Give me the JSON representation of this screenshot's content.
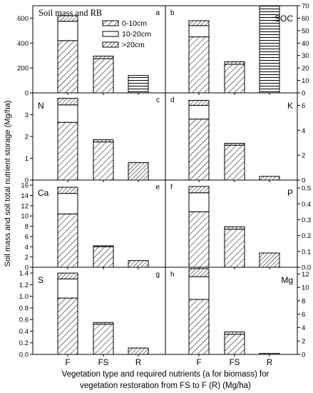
{
  "figure": {
    "ylabel": "Soil mass and soil total nutrient storage (Mg/ha)",
    "xlabel_line1": "Vegetation type and required nutrients (a for biomass) for",
    "xlabel_line2": "vegetation restoration from FS to F (R) (Mg/ha)",
    "categories": [
      "F",
      "FS",
      "R"
    ],
    "legend": [
      {
        "label": "0-10cm",
        "pattern": "diag-dense"
      },
      {
        "label": "10-20cm",
        "pattern": "blank"
      },
      {
        "label": ">20cm",
        "pattern": "diag"
      }
    ],
    "colors": {
      "axis": "#000000",
      "bar_fill": "#ffffff",
      "hatch": "#000000"
    }
  },
  "chart_data": [
    {
      "id": "a",
      "type": "bar",
      "stacked": true,
      "panel_letter": "a",
      "title": "Soil mass and RB",
      "name": "",
      "categories": [
        "F",
        "FS",
        "R"
      ],
      "ylim": [
        0,
        700
      ],
      "yticks": [
        0,
        200,
        400,
        600
      ],
      "ytick_labels": [
        "0",
        "200",
        "400",
        "600"
      ],
      "axis_side": "left",
      "show_legend": true,
      "series": [
        {
          "name": "0-10cm",
          "values": [
            420,
            275,
            0
          ]
        },
        {
          "name": "10-20cm",
          "values": [
            155,
            0,
            0
          ]
        },
        {
          "name": ">20cm",
          "values": [
            45,
            20,
            0
          ]
        }
      ],
      "extra_bars": [
        {
          "category": "R",
          "value": 140,
          "pattern": "horizontal"
        }
      ]
    },
    {
      "id": "b",
      "type": "bar",
      "stacked": true,
      "panel_letter": "b",
      "title": "",
      "name": "SOC",
      "categories": [
        "F",
        "FS",
        "R"
      ],
      "ylim": [
        0,
        70
      ],
      "yticks": [
        0,
        10,
        20,
        30,
        40,
        50,
        60,
        70
      ],
      "ytick_labels": [
        "0",
        "10",
        "20",
        "30",
        "40",
        "50",
        "60",
        "70"
      ],
      "axis_side": "right",
      "series": [
        {
          "name": "0-10cm",
          "values": [
            45,
            23,
            0
          ]
        },
        {
          "name": "10-20cm",
          "values": [
            9,
            0,
            0
          ]
        },
        {
          "name": ">20cm",
          "values": [
            4,
            2,
            0
          ]
        }
      ],
      "extra_bars": [
        {
          "category": "R",
          "value": 70,
          "pattern": "horizontal"
        }
      ]
    },
    {
      "id": "c",
      "type": "bar",
      "stacked": true,
      "panel_letter": "c",
      "title": "",
      "name": "N",
      "categories": [
        "F",
        "FS",
        "R"
      ],
      "ylim": [
        0,
        4
      ],
      "yticks": [
        0,
        1,
        2,
        3
      ],
      "ytick_labels": [
        "0",
        "1",
        "2",
        "3"
      ],
      "axis_side": "left",
      "series": [
        {
          "name": "0-10cm",
          "values": [
            2.65,
            1.75,
            0
          ]
        },
        {
          "name": "10-20cm",
          "values": [
            0.8,
            0,
            0
          ]
        },
        {
          "name": ">20cm",
          "values": [
            0.3,
            0.1,
            0
          ]
        }
      ],
      "extra_bars": [
        {
          "category": "R",
          "value": 0.8,
          "pattern": "diag"
        }
      ]
    },
    {
      "id": "d",
      "type": "bar",
      "stacked": true,
      "panel_letter": "d",
      "title": "",
      "name": "K",
      "categories": [
        "F",
        "FS",
        "R"
      ],
      "ylim": [
        0,
        7
      ],
      "yticks": [
        0,
        2,
        4,
        6
      ],
      "ytick_labels": [
        "0",
        "2",
        "4",
        "6"
      ],
      "axis_side": "right",
      "series": [
        {
          "name": "0-10cm",
          "values": [
            4.9,
            2.8,
            0
          ]
        },
        {
          "name": "10-20cm",
          "values": [
            1.1,
            0,
            0
          ]
        },
        {
          "name": ">20cm",
          "values": [
            0.4,
            0.15,
            0
          ]
        }
      ],
      "extra_bars": [
        {
          "category": "R",
          "value": 0.3,
          "pattern": "diag"
        }
      ]
    },
    {
      "id": "e",
      "type": "bar",
      "stacked": true,
      "panel_letter": "e",
      "title": "",
      "name": "Ca",
      "categories": [
        "F",
        "FS",
        "R"
      ],
      "ylim": [
        0,
        17
      ],
      "yticks": [
        0,
        2,
        4,
        6,
        8,
        10,
        12,
        14,
        16
      ],
      "ytick_labels": [
        "0",
        "2",
        "4",
        "6",
        "8",
        "10",
        "12",
        "14",
        "16"
      ],
      "axis_side": "left",
      "series": [
        {
          "name": "0-10cm",
          "values": [
            10.4,
            4.0,
            0
          ]
        },
        {
          "name": "10-20cm",
          "values": [
            4.0,
            0,
            0
          ]
        },
        {
          "name": ">20cm",
          "values": [
            1.2,
            0.2,
            0
          ]
        }
      ],
      "extra_bars": [
        {
          "category": "R",
          "value": 1.3,
          "pattern": "diag"
        }
      ]
    },
    {
      "id": "f",
      "type": "bar",
      "stacked": true,
      "panel_letter": "f",
      "title": "",
      "name": "P",
      "categories": [
        "F",
        "FS",
        "R"
      ],
      "ylim": [
        0,
        0.55
      ],
      "yticks": [
        0,
        0.1,
        0.2,
        0.3,
        0.4,
        0.5
      ],
      "ytick_labels": [
        "0.0",
        "0.1",
        "0.2",
        "0.3",
        "0.4",
        "0.5"
      ],
      "axis_side": "right",
      "series": [
        {
          "name": "0-10cm",
          "values": [
            0.35,
            0.24,
            0
          ]
        },
        {
          "name": "10-20cm",
          "values": [
            0.12,
            0,
            0
          ]
        },
        {
          "name": ">20cm",
          "values": [
            0.04,
            0.015,
            0
          ]
        }
      ],
      "extra_bars": [
        {
          "category": "R",
          "value": 0.09,
          "pattern": "diag"
        }
      ]
    },
    {
      "id": "g",
      "type": "bar",
      "stacked": true,
      "panel_letter": "g",
      "title": "",
      "name": "S",
      "categories": [
        "F",
        "FS",
        "R"
      ],
      "ylim": [
        0,
        1.5
      ],
      "yticks": [
        0,
        0.2,
        0.4,
        0.6,
        0.8,
        1.0,
        1.2,
        1.4
      ],
      "ytick_labels": [
        "0.0",
        "0.2",
        "0.4",
        "0.6",
        "0.8",
        "1.0",
        "1.2",
        "1.4"
      ],
      "axis_side": "left",
      "series": [
        {
          "name": "0-10cm",
          "values": [
            0.97,
            0.52,
            0
          ]
        },
        {
          "name": "10-20cm",
          "values": [
            0.33,
            0,
            0
          ]
        },
        {
          "name": ">20cm",
          "values": [
            0.1,
            0.03,
            0
          ]
        }
      ],
      "extra_bars": [
        {
          "category": "R",
          "value": 0.11,
          "pattern": "diag"
        }
      ]
    },
    {
      "id": "h",
      "type": "bar",
      "stacked": true,
      "panel_letter": "h",
      "title": "",
      "name": "Mg",
      "categories": [
        "F",
        "FS",
        "R"
      ],
      "ylim": [
        0,
        13
      ],
      "yticks": [
        0,
        2,
        4,
        6,
        8,
        10,
        12
      ],
      "ytick_labels": [
        "0",
        "2",
        "4",
        "6",
        "8",
        "10",
        "12"
      ],
      "axis_side": "right",
      "series": [
        {
          "name": "0-10cm",
          "values": [
            8.2,
            3.0,
            0
          ]
        },
        {
          "name": "10-20cm",
          "values": [
            3.4,
            0,
            0
          ]
        },
        {
          "name": ">20cm",
          "values": [
            1.2,
            0.35,
            0
          ]
        }
      ],
      "extra_bars": [
        {
          "category": "R",
          "value": 0.15,
          "pattern": "diag"
        }
      ]
    }
  ]
}
